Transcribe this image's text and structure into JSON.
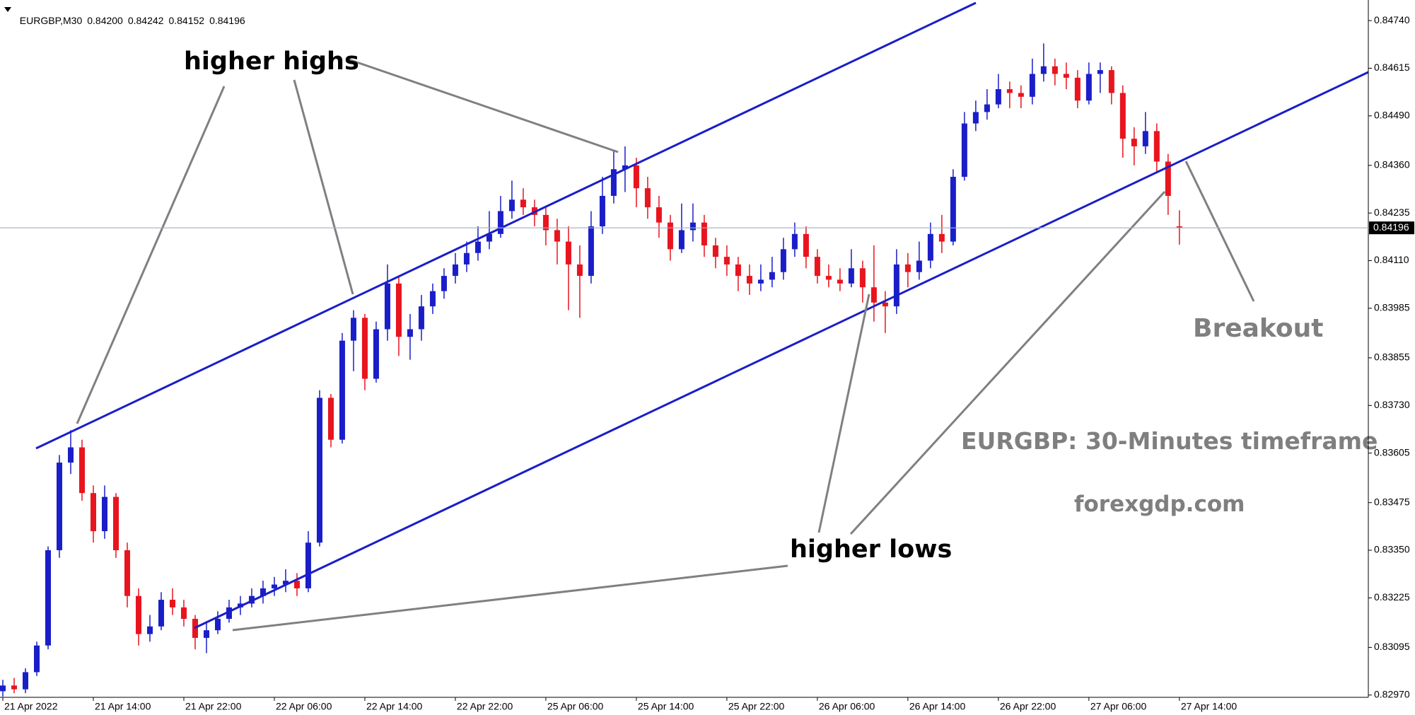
{
  "chart_data": {
    "type": "candlestick",
    "header": {
      "symbol": "EURGBP,M30",
      "ohlc": [
        "0.84200",
        "0.84242",
        "0.84152",
        "0.84196"
      ]
    },
    "annotations": {
      "higher_highs": "higher highs",
      "higher_lows": "higher lows",
      "breakout": "Breakout",
      "timeframe": "EURGBP: 30-Minutes timeframe",
      "site": "forexgdp.com"
    },
    "up_color": "#1a1ec8",
    "down_color": "#e8141e",
    "bid_line": {
      "value": 0.84196,
      "label": "0.84196",
      "color": "#9fb0c4"
    },
    "ylim": [
      0.82964,
      0.84794
    ],
    "yticks": [
      {
        "value": 0.8297,
        "label": "0.82970"
      },
      {
        "value": 0.83095,
        "label": "0.83095"
      },
      {
        "value": 0.83225,
        "label": "0.83225"
      },
      {
        "value": 0.8335,
        "label": "0.83350"
      },
      {
        "value": 0.83475,
        "label": "0.83475"
      },
      {
        "value": 0.83605,
        "label": "0.83605"
      },
      {
        "value": 0.8373,
        "label": "0.83730"
      },
      {
        "value": 0.83855,
        "label": "0.83855"
      },
      {
        "value": 0.83985,
        "label": "0.83985"
      },
      {
        "value": 0.8411,
        "label": "0.84110"
      },
      {
        "value": 0.84235,
        "label": "0.84235"
      },
      {
        "value": 0.8436,
        "label": "0.84360"
      },
      {
        "value": 0.8449,
        "label": "0.84490"
      },
      {
        "value": 0.84615,
        "label": "0.84615"
      },
      {
        "value": 0.8474,
        "label": "0.84740"
      }
    ],
    "xlim": [
      -0.25,
      120.7
    ],
    "xticks": [
      {
        "value": 0,
        "label": "21 Apr 2022"
      },
      {
        "value": 8,
        "label": "21 Apr 14:00"
      },
      {
        "value": 16,
        "label": "21 Apr 22:00"
      },
      {
        "value": 24,
        "label": "22 Apr 06:00"
      },
      {
        "value": 32,
        "label": "22 Apr 14:00"
      },
      {
        "value": 40,
        "label": "22 Apr 22:00"
      },
      {
        "value": 48,
        "label": "25 Apr 06:00"
      },
      {
        "value": 56,
        "label": "25 Apr 14:00"
      },
      {
        "value": 64,
        "label": "25 Apr 22:00"
      },
      {
        "value": 72,
        "label": "26 Apr 06:00"
      },
      {
        "value": 80,
        "label": "26 Apr 14:00"
      },
      {
        "value": 88,
        "label": "26 Apr 22:00"
      },
      {
        "value": 96,
        "label": "27 Apr 06:00"
      },
      {
        "value": 104,
        "label": "27 Apr 14:00"
      }
    ],
    "candles": [
      [
        0.8298,
        0.8301,
        0.82966,
        0.82995
      ],
      [
        0.82995,
        0.83015,
        0.82975,
        0.82985
      ],
      [
        0.82985,
        0.8304,
        0.82975,
        0.8303
      ],
      [
        0.8303,
        0.8311,
        0.8302,
        0.831
      ],
      [
        0.831,
        0.8336,
        0.8309,
        0.8335
      ],
      [
        0.8335,
        0.836,
        0.8333,
        0.8358
      ],
      [
        0.8358,
        0.83665,
        0.8355,
        0.8362
      ],
      [
        0.8362,
        0.8364,
        0.8348,
        0.835
      ],
      [
        0.835,
        0.8352,
        0.8337,
        0.834
      ],
      [
        0.834,
        0.8352,
        0.8338,
        0.8349
      ],
      [
        0.8349,
        0.835,
        0.8333,
        0.8335
      ],
      [
        0.8335,
        0.8337,
        0.832,
        0.8323
      ],
      [
        0.8323,
        0.8325,
        0.831,
        0.8313
      ],
      [
        0.8313,
        0.8318,
        0.8311,
        0.8315
      ],
      [
        0.8315,
        0.8324,
        0.8314,
        0.8322
      ],
      [
        0.8322,
        0.8325,
        0.8318,
        0.832
      ],
      [
        0.832,
        0.8322,
        0.8315,
        0.8317
      ],
      [
        0.8317,
        0.8318,
        0.8309,
        0.8312
      ],
      [
        0.8312,
        0.8316,
        0.8308,
        0.8314
      ],
      [
        0.8314,
        0.8319,
        0.8313,
        0.8317
      ],
      [
        0.8317,
        0.8322,
        0.8316,
        0.832
      ],
      [
        0.832,
        0.8323,
        0.8318,
        0.8321
      ],
      [
        0.8321,
        0.8325,
        0.832,
        0.8323
      ],
      [
        0.8323,
        0.8327,
        0.8321,
        0.8325
      ],
      [
        0.8325,
        0.8328,
        0.8323,
        0.8326
      ],
      [
        0.8326,
        0.833,
        0.8324,
        0.8327
      ],
      [
        0.8327,
        0.8329,
        0.8323,
        0.8325
      ],
      [
        0.8325,
        0.834,
        0.8324,
        0.8337
      ],
      [
        0.8337,
        0.8377,
        0.8336,
        0.8375
      ],
      [
        0.8375,
        0.8376,
        0.8362,
        0.8364
      ],
      [
        0.8364,
        0.8392,
        0.8363,
        0.839
      ],
      [
        0.839,
        0.8398,
        0.8382,
        0.8396
      ],
      [
        0.8396,
        0.8397,
        0.8377,
        0.838
      ],
      [
        0.838,
        0.8395,
        0.8379,
        0.8393
      ],
      [
        0.8393,
        0.841,
        0.839,
        0.8405
      ],
      [
        0.8405,
        0.8407,
        0.8386,
        0.8391
      ],
      [
        0.8391,
        0.8397,
        0.8385,
        0.8393
      ],
      [
        0.8393,
        0.8402,
        0.839,
        0.8399
      ],
      [
        0.8399,
        0.8405,
        0.8397,
        0.8403
      ],
      [
        0.8403,
        0.8409,
        0.8401,
        0.8407
      ],
      [
        0.8407,
        0.8413,
        0.8405,
        0.841
      ],
      [
        0.841,
        0.8416,
        0.8408,
        0.8413
      ],
      [
        0.8413,
        0.842,
        0.8411,
        0.8416
      ],
      [
        0.8416,
        0.8424,
        0.8414,
        0.8418
      ],
      [
        0.8418,
        0.8428,
        0.8417,
        0.8424
      ],
      [
        0.8424,
        0.8432,
        0.8422,
        0.8427
      ],
      [
        0.8427,
        0.843,
        0.8423,
        0.8425
      ],
      [
        0.8425,
        0.8427,
        0.842,
        0.8423
      ],
      [
        0.8423,
        0.8425,
        0.8415,
        0.8419
      ],
      [
        0.8419,
        0.8422,
        0.841,
        0.8416
      ],
      [
        0.8416,
        0.842,
        0.8398,
        0.841
      ],
      [
        0.841,
        0.8415,
        0.8396,
        0.8407
      ],
      [
        0.8407,
        0.8424,
        0.8405,
        0.842
      ],
      [
        0.842,
        0.8433,
        0.8418,
        0.8428
      ],
      [
        0.8428,
        0.844,
        0.8426,
        0.8435
      ],
      [
        0.8435,
        0.8441,
        0.8429,
        0.8436
      ],
      [
        0.8436,
        0.8438,
        0.8425,
        0.843
      ],
      [
        0.843,
        0.8433,
        0.8422,
        0.8425
      ],
      [
        0.8425,
        0.8428,
        0.8417,
        0.8421
      ],
      [
        0.8421,
        0.8423,
        0.8411,
        0.8414
      ],
      [
        0.8414,
        0.8426,
        0.8413,
        0.8419
      ],
      [
        0.8419,
        0.8426,
        0.8416,
        0.8421
      ],
      [
        0.8421,
        0.8423,
        0.8412,
        0.8415
      ],
      [
        0.8415,
        0.8417,
        0.8409,
        0.8412
      ],
      [
        0.8412,
        0.8415,
        0.8407,
        0.841
      ],
      [
        0.841,
        0.8412,
        0.8403,
        0.8407
      ],
      [
        0.8407,
        0.841,
        0.8402,
        0.8405
      ],
      [
        0.8405,
        0.841,
        0.8403,
        0.8406
      ],
      [
        0.8406,
        0.8412,
        0.8404,
        0.8408
      ],
      [
        0.8408,
        0.8417,
        0.8406,
        0.8414
      ],
      [
        0.8414,
        0.8421,
        0.8412,
        0.8418
      ],
      [
        0.8418,
        0.842,
        0.8409,
        0.8412
      ],
      [
        0.8412,
        0.8414,
        0.8405,
        0.8407
      ],
      [
        0.8407,
        0.841,
        0.8404,
        0.8406
      ],
      [
        0.8406,
        0.8409,
        0.8403,
        0.8405
      ],
      [
        0.8405,
        0.8414,
        0.8404,
        0.8409
      ],
      [
        0.8409,
        0.8411,
        0.84,
        0.8404
      ],
      [
        0.8404,
        0.8415,
        0.8395,
        0.84
      ],
      [
        0.84,
        0.8403,
        0.8392,
        0.8399
      ],
      [
        0.8399,
        0.8414,
        0.8397,
        0.841
      ],
      [
        0.841,
        0.8413,
        0.8404,
        0.8408
      ],
      [
        0.8408,
        0.8416,
        0.8406,
        0.8411
      ],
      [
        0.8411,
        0.8421,
        0.8409,
        0.8418
      ],
      [
        0.8418,
        0.8423,
        0.8413,
        0.8416
      ],
      [
        0.8416,
        0.8435,
        0.8415,
        0.8433
      ],
      [
        0.8433,
        0.845,
        0.8432,
        0.8447
      ],
      [
        0.8447,
        0.8453,
        0.8445,
        0.845
      ],
      [
        0.845,
        0.8456,
        0.8448,
        0.8452
      ],
      [
        0.8452,
        0.846,
        0.8451,
        0.8456
      ],
      [
        0.8456,
        0.8458,
        0.8451,
        0.8455
      ],
      [
        0.8455,
        0.8457,
        0.8451,
        0.8454
      ],
      [
        0.8454,
        0.8464,
        0.8452,
        0.846
      ],
      [
        0.846,
        0.8468,
        0.8458,
        0.8462
      ],
      [
        0.8462,
        0.8464,
        0.8457,
        0.846
      ],
      [
        0.846,
        0.8463,
        0.8456,
        0.8459
      ],
      [
        0.8459,
        0.8461,
        0.8451,
        0.8453
      ],
      [
        0.8453,
        0.8463,
        0.8452,
        0.846
      ],
      [
        0.846,
        0.8463,
        0.8455,
        0.8461
      ],
      [
        0.8461,
        0.8462,
        0.8452,
        0.8455
      ],
      [
        0.8455,
        0.8457,
        0.8438,
        0.8443
      ],
      [
        0.8443,
        0.8446,
        0.8436,
        0.8441
      ],
      [
        0.8441,
        0.845,
        0.8439,
        0.8445
      ],
      [
        0.8445,
        0.8447,
        0.8434,
        0.8437
      ],
      [
        0.8437,
        0.8439,
        0.8423,
        0.8428
      ],
      [
        0.842,
        0.84242,
        0.84152,
        0.84196
      ]
    ]
  }
}
